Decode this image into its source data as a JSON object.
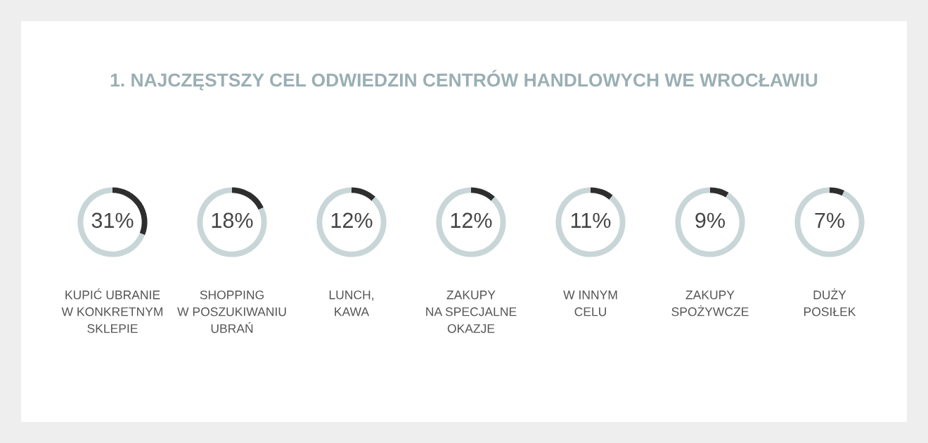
{
  "chart_data": [
    {
      "type": "donut",
      "title": "1. NAJCZĘSTSZY CEL ODWIEDZIN CENTRÓW HANDLOWYCH WE WROCŁAWIU",
      "xlabel": "KUPIĆ UBRANIE\nW KONKRETNYM\nSKLEPIE",
      "categories": [
        null,
        null
      ],
      "values": [
        31,
        69
      ],
      "colors": [
        "#2e2e2e",
        "#c8d6d8"
      ],
      "value_labels": [
        "31%",
        null
      ]
    },
    {
      "type": "donut",
      "xlabel": "SHOPPING\nW POSZUKIWANIU\nUBRAŃ",
      "categories": [
        null,
        null
      ],
      "values": [
        18,
        82
      ],
      "colors": [
        "#2e2e2e",
        "#c8d6d8"
      ],
      "value_labels": [
        "18%",
        null
      ]
    },
    {
      "type": "donut",
      "xlabel": "LUNCH,\nKAWA",
      "categories": [
        null,
        null
      ],
      "values": [
        12,
        88
      ],
      "colors": [
        "#2e2e2e",
        "#c8d6d8"
      ],
      "value_labels": [
        "12%",
        null
      ]
    },
    {
      "type": "donut",
      "xlabel": "ZAKUPY\nNA SPECJALNE\nOKAZJE",
      "categories": [
        null,
        null
      ],
      "values": [
        12,
        88
      ],
      "colors": [
        "#2e2e2e",
        "#c8d6d8"
      ],
      "value_labels": [
        "12%",
        null
      ]
    },
    {
      "type": "donut",
      "xlabel": "W INNYM\nCELU",
      "categories": [
        null,
        null
      ],
      "values": [
        11,
        89
      ],
      "colors": [
        "#2e2e2e",
        "#c8d6d8"
      ],
      "value_labels": [
        "11%",
        null
      ]
    },
    {
      "type": "donut",
      "xlabel": "ZAKUPY\nSPOŻYWCZE",
      "categories": [
        null,
        null
      ],
      "values": [
        9,
        91
      ],
      "colors": [
        "#2e2e2e",
        "#c8d6d8"
      ],
      "value_labels": [
        "9%",
        null
      ]
    },
    {
      "type": "donut",
      "xlabel": "DUŻY\nPOSIŁEK",
      "categories": [
        null,
        null
      ],
      "values": [
        7,
        93
      ],
      "colors": [
        "#2e2e2e",
        "#c8d6d8"
      ],
      "value_labels": [
        "7%",
        null
      ]
    }
  ]
}
